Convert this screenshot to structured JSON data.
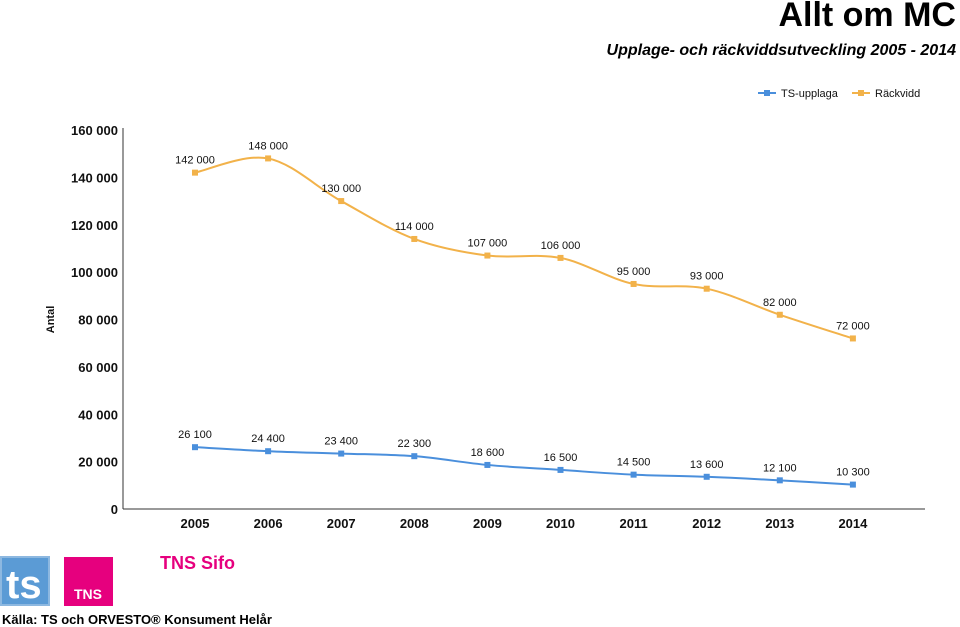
{
  "header": {
    "title": "Allt om MC",
    "subtitle": "Upplage- och räckviddsutveckling 2005 - 2014"
  },
  "chart_data": {
    "type": "line",
    "title": "",
    "xlabel": "",
    "ylabel": "Antal",
    "x": [
      "2005",
      "2006",
      "2007",
      "2008",
      "2009",
      "2010",
      "2011",
      "2012",
      "2013",
      "2014"
    ],
    "ylim": [
      0,
      160000
    ],
    "yticks": [
      0,
      20000,
      40000,
      60000,
      80000,
      100000,
      120000,
      140000,
      160000
    ],
    "ytick_labels": [
      "0",
      "20 000",
      "40 000",
      "60 000",
      "80 000",
      "100 000",
      "120 000",
      "140 000",
      "160 000"
    ],
    "grid": false,
    "legend_position": "top-right",
    "series": [
      {
        "name": "TS-upplaga",
        "color": "#4a8fdc",
        "values": [
          26100,
          24400,
          23400,
          22300,
          18600,
          16500,
          14500,
          13600,
          12100,
          10300
        ],
        "labels": [
          "26 100",
          "24 400",
          "23 400",
          "22 300",
          "18 600",
          "16 500",
          "14 500",
          "13 600",
          "12 100",
          "10 300"
        ]
      },
      {
        "name": "Räckvidd",
        "color": "#f2b24a",
        "values": [
          142000,
          148000,
          130000,
          114000,
          107000,
          106000,
          95000,
          93000,
          82000,
          72000
        ],
        "labels": [
          "142 000",
          "148 000",
          "130 000",
          "114 000",
          "107 000",
          "106 000",
          "95 000",
          "93 000",
          "82 000",
          "72 000"
        ]
      }
    ]
  },
  "footer": {
    "logo_ts_text": "ts",
    "logo_tns_text": "TNS",
    "logo_sifo_text": "TNS Sifo",
    "source": "Källa: TS och ORVESTO® Konsument Helår"
  }
}
